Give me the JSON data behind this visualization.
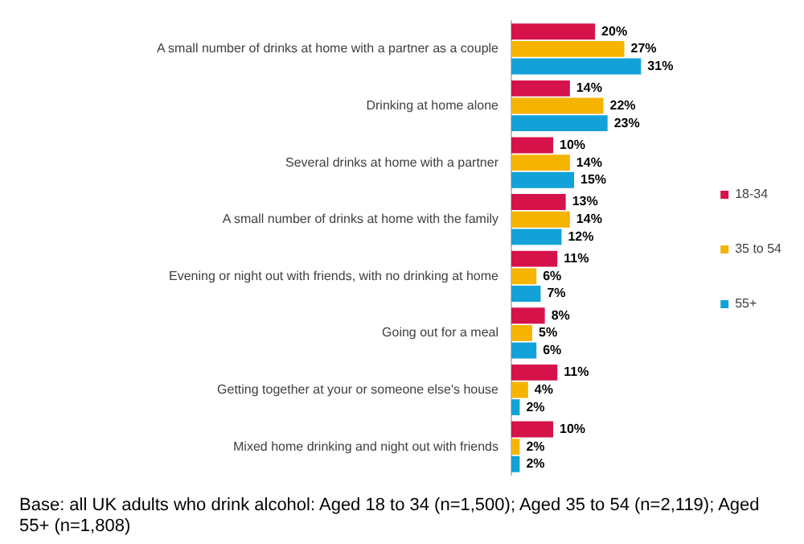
{
  "chart_data": {
    "type": "bar",
    "orientation": "horizontal",
    "categories": [
      "A small number of drinks at home with a partner as a couple",
      "Drinking at home alone",
      "Several drinks at home with a partner",
      "A small number of drinks at home with the family",
      "Evening or night out with friends, with no drinking at home",
      "Going out for a meal",
      "Getting together at your or someone else's house",
      "Mixed home drinking and night out with friends"
    ],
    "series": [
      {
        "name": "18-34",
        "color": "#d6124b",
        "values": [
          20,
          14,
          10,
          13,
          11,
          8,
          11,
          10
        ],
        "value_labels": [
          "20%",
          "14%",
          "10%",
          "13%",
          "11%",
          "8%",
          "11%",
          "10%"
        ]
      },
      {
        "name": "35 to 54",
        "color": "#f5b400",
        "values": [
          27,
          22,
          14,
          14,
          6,
          5,
          4,
          2
        ],
        "value_labels": [
          "27%",
          "22%",
          "14%",
          "14%",
          "6%",
          "5%",
          "4%",
          "2%"
        ]
      },
      {
        "name": "55+",
        "color": "#12a2d8",
        "values": [
          31,
          23,
          15,
          12,
          7,
          6,
          2,
          2
        ],
        "value_labels": [
          "31%",
          "23%",
          "15%",
          "12%",
          "7%",
          "6%",
          "2%",
          "2%"
        ]
      }
    ],
    "legend": "right",
    "grid": false,
    "tick_labels": "y",
    "annotations": [
      "Base: all UK adults who drink alcohol: Aged 18 to 34 (n=1,500);  Aged 35 to 54 (n=2,119);  Aged 55+ (n=1,808)"
    ]
  }
}
